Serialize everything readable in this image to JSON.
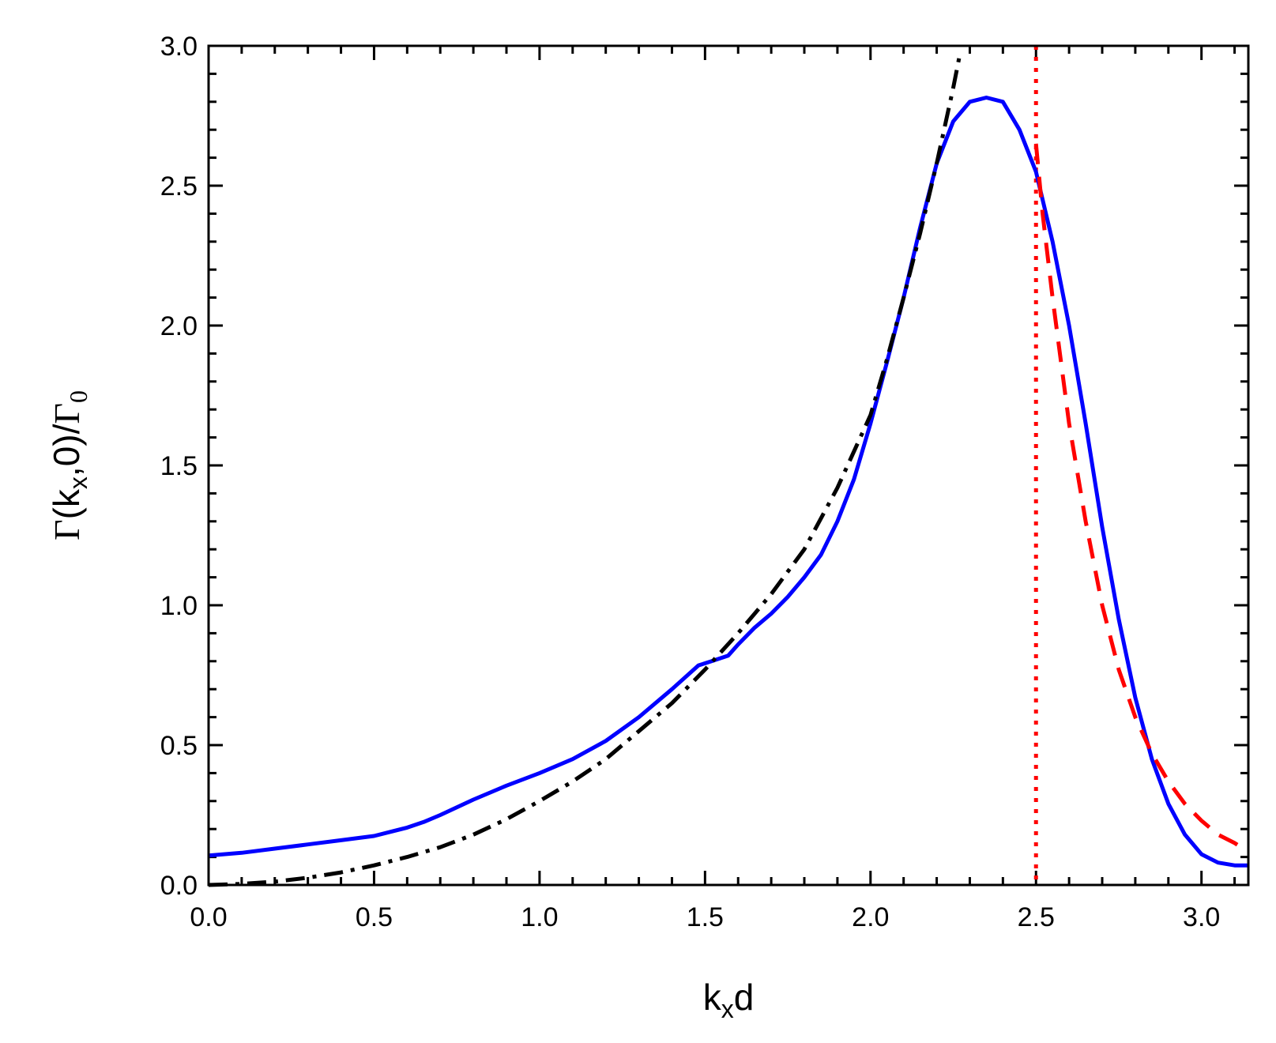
{
  "chart_data": {
    "type": "line",
    "xlabel": {
      "main": "k",
      "sub": "x",
      "rest": "d"
    },
    "ylabel": {
      "g1": "Γ",
      "p1": "(k",
      "sub": "x",
      "p2": ",0)/",
      "g2": "Γ",
      "sub2": "0"
    },
    "xlim": [
      0,
      3.1416
    ],
    "ylim": [
      0,
      3.0
    ],
    "x_ticks": [
      "0.0",
      "0.5",
      "1.0",
      "1.5",
      "2.0",
      "2.5",
      "3.0"
    ],
    "y_ticks": [
      "0.0",
      "0.5",
      "1.0",
      "1.5",
      "2.0",
      "2.5",
      "3.0"
    ],
    "grid": false,
    "series": [
      {
        "style": "solid",
        "color": "#0000ff",
        "x": [
          0.0,
          0.1,
          0.2,
          0.3,
          0.4,
          0.5,
          0.55,
          0.6,
          0.65,
          0.7,
          0.8,
          0.9,
          1.0,
          1.1,
          1.2,
          1.3,
          1.4,
          1.48,
          1.52,
          1.57,
          1.6,
          1.65,
          1.7,
          1.75,
          1.8,
          1.85,
          1.9,
          1.95,
          2.0,
          2.05,
          2.1,
          2.15,
          2.2,
          2.25,
          2.3,
          2.35,
          2.4,
          2.45,
          2.5,
          2.55,
          2.6,
          2.65,
          2.7,
          2.75,
          2.8,
          2.85,
          2.9,
          2.95,
          3.0,
          3.05,
          3.1,
          3.14
        ],
        "y": [
          0.105,
          0.115,
          0.13,
          0.145,
          0.16,
          0.175,
          0.19,
          0.205,
          0.225,
          0.25,
          0.305,
          0.355,
          0.4,
          0.45,
          0.515,
          0.6,
          0.7,
          0.785,
          0.8,
          0.82,
          0.86,
          0.92,
          0.97,
          1.03,
          1.1,
          1.18,
          1.3,
          1.45,
          1.65,
          1.87,
          2.1,
          2.35,
          2.58,
          2.73,
          2.8,
          2.815,
          2.8,
          2.7,
          2.55,
          2.3,
          2.0,
          1.65,
          1.28,
          0.95,
          0.67,
          0.45,
          0.29,
          0.18,
          0.11,
          0.08,
          0.07,
          0.07
        ]
      },
      {
        "style": "dashdot",
        "color": "#000000",
        "x": [
          0.0,
          0.1,
          0.2,
          0.3,
          0.4,
          0.5,
          0.6,
          0.7,
          0.8,
          0.9,
          1.0,
          1.1,
          1.2,
          1.3,
          1.4,
          1.5,
          1.6,
          1.7,
          1.8,
          1.9,
          2.0,
          2.05,
          2.1,
          2.15,
          2.2,
          2.25,
          2.27
        ],
        "y": [
          0.0,
          0.004,
          0.012,
          0.026,
          0.045,
          0.07,
          0.1,
          0.135,
          0.18,
          0.235,
          0.3,
          0.37,
          0.45,
          0.55,
          0.65,
          0.77,
          0.9,
          1.04,
          1.2,
          1.42,
          1.68,
          1.88,
          2.1,
          2.33,
          2.58,
          2.85,
          2.97
        ]
      },
      {
        "style": "dashed",
        "color": "#ff0000",
        "x": [
          2.5,
          2.52,
          2.55,
          2.6,
          2.65,
          2.7,
          2.75,
          2.8,
          2.85,
          2.9,
          2.95,
          3.0,
          3.05,
          3.1,
          3.14
        ],
        "y": [
          2.65,
          2.4,
          2.1,
          1.65,
          1.3,
          1.0,
          0.77,
          0.6,
          0.47,
          0.37,
          0.29,
          0.23,
          0.18,
          0.15,
          0.12
        ]
      }
    ],
    "vlines": [
      {
        "x": 2.5,
        "style": "dotted",
        "color": "#ff0000"
      }
    ]
  }
}
